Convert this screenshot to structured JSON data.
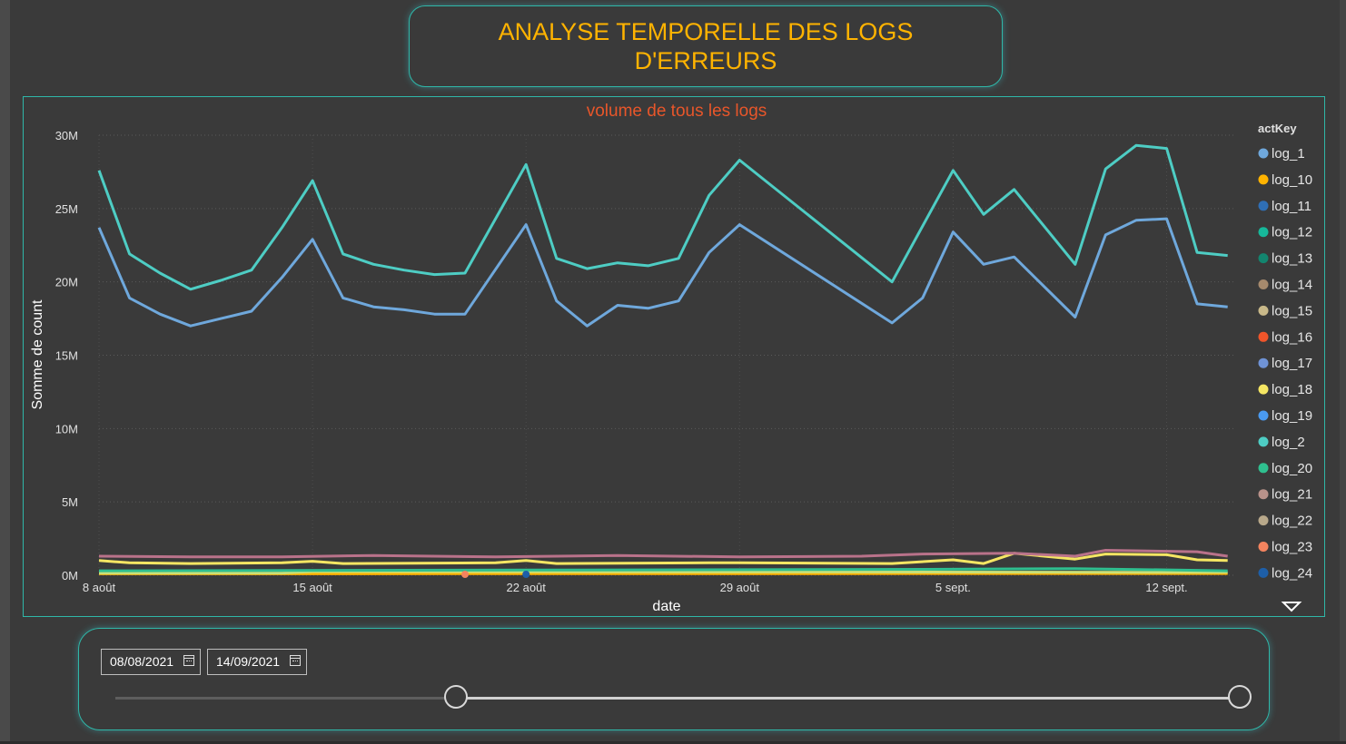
{
  "header": {
    "title_line1": "ANALYSE TEMPORELLE  DES LOGS",
    "title_line2": "D'ERREURS"
  },
  "colors": {
    "accent_border": "#2fb7a8",
    "title": "#ffb300",
    "chart_title": "#e8562a"
  },
  "chart_data": {
    "type": "line",
    "title": "volume de tous les logs",
    "xlabel": "date",
    "ylabel": "Somme de count",
    "ylim": [
      0,
      30000000
    ],
    "yticks": [
      {
        "value": 0,
        "label": "0M"
      },
      {
        "value": 5000000,
        "label": "5M"
      },
      {
        "value": 10000000,
        "label": "10M"
      },
      {
        "value": 15000000,
        "label": "15M"
      },
      {
        "value": 20000000,
        "label": "20M"
      },
      {
        "value": 25000000,
        "label": "25M"
      },
      {
        "value": 30000000,
        "label": "30M"
      }
    ],
    "xticks": [
      {
        "date": "2021-08-08",
        "label": "8 août"
      },
      {
        "date": "2021-08-15",
        "label": "15 août"
      },
      {
        "date": "2021-08-22",
        "label": "22 août"
      },
      {
        "date": "2021-08-29",
        "label": "29 août"
      },
      {
        "date": "2021-09-05",
        "label": "5 sept."
      },
      {
        "date": "2021-09-12",
        "label": "12 sept."
      }
    ],
    "grid": true,
    "legend_position": "right",
    "legend_title": "actKey",
    "legend": [
      {
        "name": "log_1",
        "color": "#6fa8dc"
      },
      {
        "name": "log_10",
        "color": "#ffb300"
      },
      {
        "name": "log_11",
        "color": "#2f6fb5"
      },
      {
        "name": "log_12",
        "color": "#16b89a"
      },
      {
        "name": "log_13",
        "color": "#13856f"
      },
      {
        "name": "log_14",
        "color": "#a68a6d"
      },
      {
        "name": "log_15",
        "color": "#c9b98a"
      },
      {
        "name": "log_16",
        "color": "#f0552a"
      },
      {
        "name": "log_17",
        "color": "#6f93d6"
      },
      {
        "name": "log_18",
        "color": "#f5e663"
      },
      {
        "name": "log_19",
        "color": "#4a9af0"
      },
      {
        "name": "log_2",
        "color": "#4ecdc4"
      },
      {
        "name": "log_20",
        "color": "#2fbf8f"
      },
      {
        "name": "log_21",
        "color": "#b9928a"
      },
      {
        "name": "log_22",
        "color": "#b8a88a"
      },
      {
        "name": "log_23",
        "color": "#f4845f"
      },
      {
        "name": "log_24",
        "color": "#1e5fa8"
      }
    ],
    "series": [
      {
        "name": "log_2",
        "color": "#4ecdc4",
        "points": [
          [
            "2021-08-08",
            27600000
          ],
          [
            "2021-08-09",
            21900000
          ],
          [
            "2021-08-10",
            20600000
          ],
          [
            "2021-08-11",
            19500000
          ],
          [
            "2021-08-12",
            20100000
          ],
          [
            "2021-08-13",
            20800000
          ],
          [
            "2021-08-14",
            23700000
          ],
          [
            "2021-08-15",
            26900000
          ],
          [
            "2021-08-16",
            21900000
          ],
          [
            "2021-08-17",
            21200000
          ],
          [
            "2021-08-18",
            20800000
          ],
          [
            "2021-08-19",
            20500000
          ],
          [
            "2021-08-20",
            20600000
          ],
          [
            "2021-08-22",
            28000000
          ],
          [
            "2021-08-23",
            21600000
          ],
          [
            "2021-08-24",
            20900000
          ],
          [
            "2021-08-25",
            21300000
          ],
          [
            "2021-08-26",
            21100000
          ],
          [
            "2021-08-27",
            21600000
          ],
          [
            "2021-08-28",
            25900000
          ],
          [
            "2021-08-29",
            28300000
          ],
          [
            "2021-09-03",
            20000000
          ],
          [
            "2021-09-05",
            27600000
          ],
          [
            "2021-09-06",
            24600000
          ],
          [
            "2021-09-07",
            26300000
          ],
          [
            "2021-09-09",
            21200000
          ],
          [
            "2021-09-10",
            27700000
          ],
          [
            "2021-09-11",
            29300000
          ],
          [
            "2021-09-12",
            29100000
          ],
          [
            "2021-09-13",
            22000000
          ],
          [
            "2021-09-14",
            21800000
          ]
        ]
      },
      {
        "name": "log_1",
        "color": "#6fa8dc",
        "points": [
          [
            "2021-08-08",
            23700000
          ],
          [
            "2021-08-09",
            18900000
          ],
          [
            "2021-08-10",
            17800000
          ],
          [
            "2021-08-11",
            17000000
          ],
          [
            "2021-08-12",
            17500000
          ],
          [
            "2021-08-13",
            18000000
          ],
          [
            "2021-08-14",
            20300000
          ],
          [
            "2021-08-15",
            22900000
          ],
          [
            "2021-08-16",
            18900000
          ],
          [
            "2021-08-17",
            18300000
          ],
          [
            "2021-08-18",
            18100000
          ],
          [
            "2021-08-19",
            17800000
          ],
          [
            "2021-08-20",
            17800000
          ],
          [
            "2021-08-22",
            23900000
          ],
          [
            "2021-08-23",
            18700000
          ],
          [
            "2021-08-24",
            17000000
          ],
          [
            "2021-08-25",
            18400000
          ],
          [
            "2021-08-26",
            18200000
          ],
          [
            "2021-08-27",
            18700000
          ],
          [
            "2021-08-28",
            22000000
          ],
          [
            "2021-08-29",
            23900000
          ],
          [
            "2021-09-03",
            17200000
          ],
          [
            "2021-09-04",
            18900000
          ],
          [
            "2021-09-05",
            23400000
          ],
          [
            "2021-09-06",
            21200000
          ],
          [
            "2021-09-07",
            21700000
          ],
          [
            "2021-09-09",
            17600000
          ],
          [
            "2021-09-10",
            23200000
          ],
          [
            "2021-09-11",
            24200000
          ],
          [
            "2021-09-12",
            24300000
          ],
          [
            "2021-09-13",
            18500000
          ],
          [
            "2021-09-14",
            18300000
          ]
        ]
      },
      {
        "name": "log_21",
        "color": "#b9728a",
        "points": [
          [
            "2021-08-08",
            1300000
          ],
          [
            "2021-08-11",
            1250000
          ],
          [
            "2021-08-14",
            1250000
          ],
          [
            "2021-08-17",
            1350000
          ],
          [
            "2021-08-21",
            1250000
          ],
          [
            "2021-08-25",
            1350000
          ],
          [
            "2021-08-29",
            1250000
          ],
          [
            "2021-09-02",
            1300000
          ],
          [
            "2021-09-04",
            1450000
          ],
          [
            "2021-09-07",
            1500000
          ],
          [
            "2021-09-09",
            1300000
          ],
          [
            "2021-09-10",
            1700000
          ],
          [
            "2021-09-13",
            1600000
          ],
          [
            "2021-09-14",
            1300000
          ]
        ]
      },
      {
        "name": "log_18",
        "color": "#f5e663",
        "points": [
          [
            "2021-08-08",
            1000000
          ],
          [
            "2021-08-09",
            850000
          ],
          [
            "2021-08-11",
            800000
          ],
          [
            "2021-08-14",
            850000
          ],
          [
            "2021-08-15",
            950000
          ],
          [
            "2021-08-16",
            800000
          ],
          [
            "2021-08-21",
            850000
          ],
          [
            "2021-08-22",
            1000000
          ],
          [
            "2021-08-23",
            800000
          ],
          [
            "2021-08-28",
            850000
          ],
          [
            "2021-08-29",
            850000
          ],
          [
            "2021-09-03",
            800000
          ],
          [
            "2021-09-05",
            1050000
          ],
          [
            "2021-09-06",
            800000
          ],
          [
            "2021-09-07",
            1500000
          ],
          [
            "2021-09-09",
            1100000
          ],
          [
            "2021-09-10",
            1450000
          ],
          [
            "2021-09-12",
            1400000
          ],
          [
            "2021-09-13",
            1050000
          ],
          [
            "2021-09-14",
            1000000
          ]
        ]
      },
      {
        "name": "log_20",
        "color": "#2fbf8f",
        "points": [
          [
            "2021-08-08",
            300000
          ],
          [
            "2021-08-22",
            350000
          ],
          [
            "2021-09-04",
            400000
          ],
          [
            "2021-09-09",
            450000
          ],
          [
            "2021-09-14",
            300000
          ]
        ]
      },
      {
        "name": "log_15",
        "color": "#c9e07a",
        "points": [
          [
            "2021-08-08",
            150000
          ],
          [
            "2021-08-14",
            150000
          ],
          [
            "2021-08-15",
            250000
          ],
          [
            "2021-09-14",
            200000
          ]
        ]
      },
      {
        "name": "log_10",
        "color": "#ffb300",
        "points": [
          [
            "2021-08-08",
            100000
          ],
          [
            "2021-09-14",
            120000
          ]
        ]
      }
    ]
  },
  "slicer": {
    "start_date": "08/08/2021",
    "end_date": "14/09/2021"
  },
  "icons": {
    "calendar": "calendar-icon",
    "expand": "chevron-down-icon"
  }
}
